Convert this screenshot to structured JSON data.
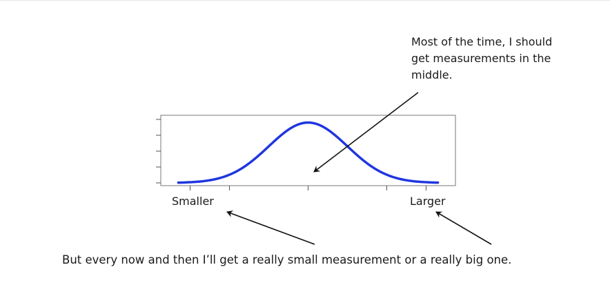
{
  "annotations": {
    "middle": "Most of the time, I should\nget measurements in the\nmiddle.",
    "extremes": "But every now and then I’ll get a really small measurement or a really big one."
  },
  "chart_data": {
    "type": "line",
    "title": "",
    "xlabel": "",
    "ylabel": "",
    "x_tick_labels": [
      "Smaller",
      "Larger"
    ],
    "series": [
      {
        "x": [
          -3.3,
          -3.0,
          -2.5,
          -2.0,
          -1.5,
          -1.0,
          -0.5,
          0.0,
          0.5,
          1.0,
          1.5,
          2.0,
          2.5,
          3.0,
          3.3
        ],
        "values": [
          0.002,
          0.004,
          0.018,
          0.054,
          0.13,
          0.242,
          0.352,
          0.399,
          0.352,
          0.242,
          0.13,
          0.054,
          0.018,
          0.004,
          0.002
        ]
      }
    ],
    "xlim": [
      -3.5,
      3.5
    ],
    "ylim": [
      0,
      0.42
    ],
    "grid": false,
    "colors": {
      "curve": "#1f36e0",
      "axis": "#555555",
      "arrow": "#111111"
    }
  }
}
